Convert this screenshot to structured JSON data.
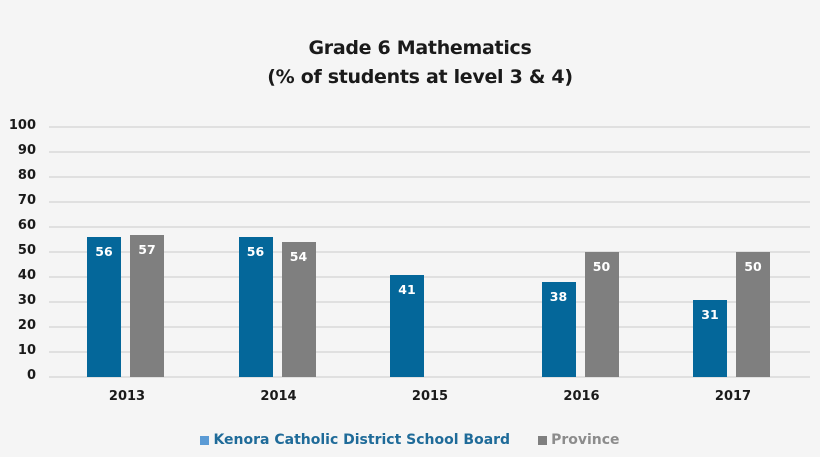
{
  "chart_data": {
    "type": "bar",
    "title": "Grade 6 Mathematics",
    "subtitle": "(% of students at level 3 & 4)",
    "xlabel": "",
    "ylabel": "",
    "ylim": [
      0,
      100
    ],
    "yticks": [
      0,
      10,
      20,
      30,
      40,
      50,
      60,
      70,
      80,
      90,
      100
    ],
    "grid": true,
    "legend_position": "bottom",
    "categories": [
      "2013",
      "2014",
      "2015",
      "2016",
      "2017"
    ],
    "series": [
      {
        "name": "Kenora Catholic District School Board",
        "color": "#04679a",
        "values": [
          56,
          56,
          41,
          38,
          31
        ]
      },
      {
        "name": "Province",
        "color": "#7f7f7f",
        "values": [
          57,
          54,
          null,
          50,
          50
        ]
      }
    ]
  },
  "legend": {
    "kcdsb_label": "Kenora Catholic District School Board",
    "kcdsb_swatch": "#5b9bd5",
    "kcdsb_text_color": "#1f6b99",
    "province_label": "Province",
    "province_swatch": "#7f7f7f",
    "province_text_color": "#8c8c8c"
  }
}
